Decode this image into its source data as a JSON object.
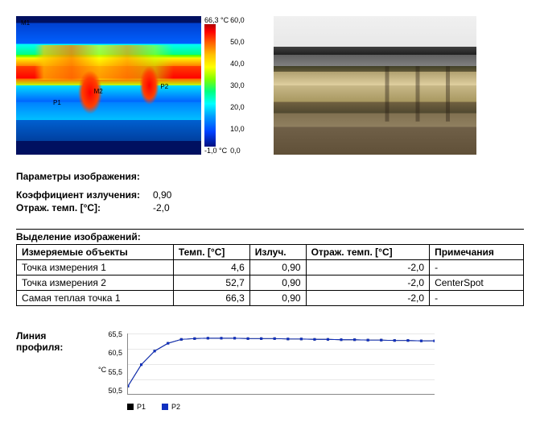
{
  "thermal": {
    "markers": {
      "m1": "M1",
      "m2": "M2",
      "p1": "P1",
      "p2": "P2"
    },
    "scale": {
      "max": "66,3 °C",
      "min": "-1,0 °C",
      "ticks": [
        "60,0",
        "50,0",
        "40,0",
        "30,0",
        "20,0",
        "10,0",
        "0,0"
      ],
      "bar_gradient_stops": [
        "#b00000",
        "#ff0000",
        "#ff6000",
        "#ffc000",
        "#ffff00",
        "#80ff00",
        "#00ff80",
        "#00ffff",
        "#00a0ff",
        "#0040ff",
        "#001080"
      ]
    }
  },
  "params": {
    "title": "Параметры изображения:",
    "rows": [
      {
        "label": "Коэффициент излучения:",
        "value": "0,90"
      },
      {
        "label": "Отраж. темп. [°C]:",
        "value": "-2,0"
      }
    ]
  },
  "selection": {
    "title": "Выделение изображений:",
    "columns": [
      "Измеряемые объекты",
      "Темп. [°C]",
      "Излуч.",
      "Отраж. темп. [°C]",
      "Примечания"
    ],
    "rows": [
      [
        "Точка измерения 1",
        "4,6",
        "0,90",
        "-2,0",
        "-"
      ],
      [
        "Точка измерения 2",
        "52,7",
        "0,90",
        "-2,0",
        "CenterSpot"
      ],
      [
        "Самая теплая точка 1",
        "66,3",
        "0,90",
        "-2,0",
        "-"
      ]
    ],
    "numeric_cols": [
      1,
      2,
      3
    ],
    "border_color": "#000000",
    "header_fontweight": "bold"
  },
  "profile": {
    "label": "Линия профиля:",
    "chart": {
      "type": "line",
      "ylim": [
        50.0,
        65.5
      ],
      "yticks": [
        "65,5",
        "60,5",
        "55,5",
        "50,5"
      ],
      "yunit": "°C",
      "grid_color": "#e8e8e8",
      "axis_color": "#888888",
      "background_color": "#ffffff",
      "fontsize": 9,
      "series": [
        {
          "name": "P1",
          "color": "#000000",
          "marker": "square",
          "marker_size": 3,
          "line_width": 1,
          "y": [
            52.0,
            57.5,
            61.0,
            63.0,
            64.0,
            64.2,
            64.3,
            64.3,
            64.3,
            64.2,
            64.2,
            64.2,
            64.1,
            64.1,
            64.0,
            64.0,
            63.9,
            63.9,
            63.8,
            63.8,
            63.7,
            63.7,
            63.6,
            63.6
          ]
        },
        {
          "name": "P2",
          "color": "#1030c0",
          "marker": "square",
          "marker_size": 3,
          "line_width": 1,
          "y": [
            52.0,
            57.5,
            61.0,
            63.0,
            64.0,
            64.2,
            64.3,
            64.3,
            64.3,
            64.2,
            64.2,
            64.2,
            64.1,
            64.1,
            64.0,
            64.0,
            63.9,
            63.9,
            63.8,
            63.8,
            63.7,
            63.7,
            63.6,
            63.6
          ]
        }
      ]
    }
  }
}
